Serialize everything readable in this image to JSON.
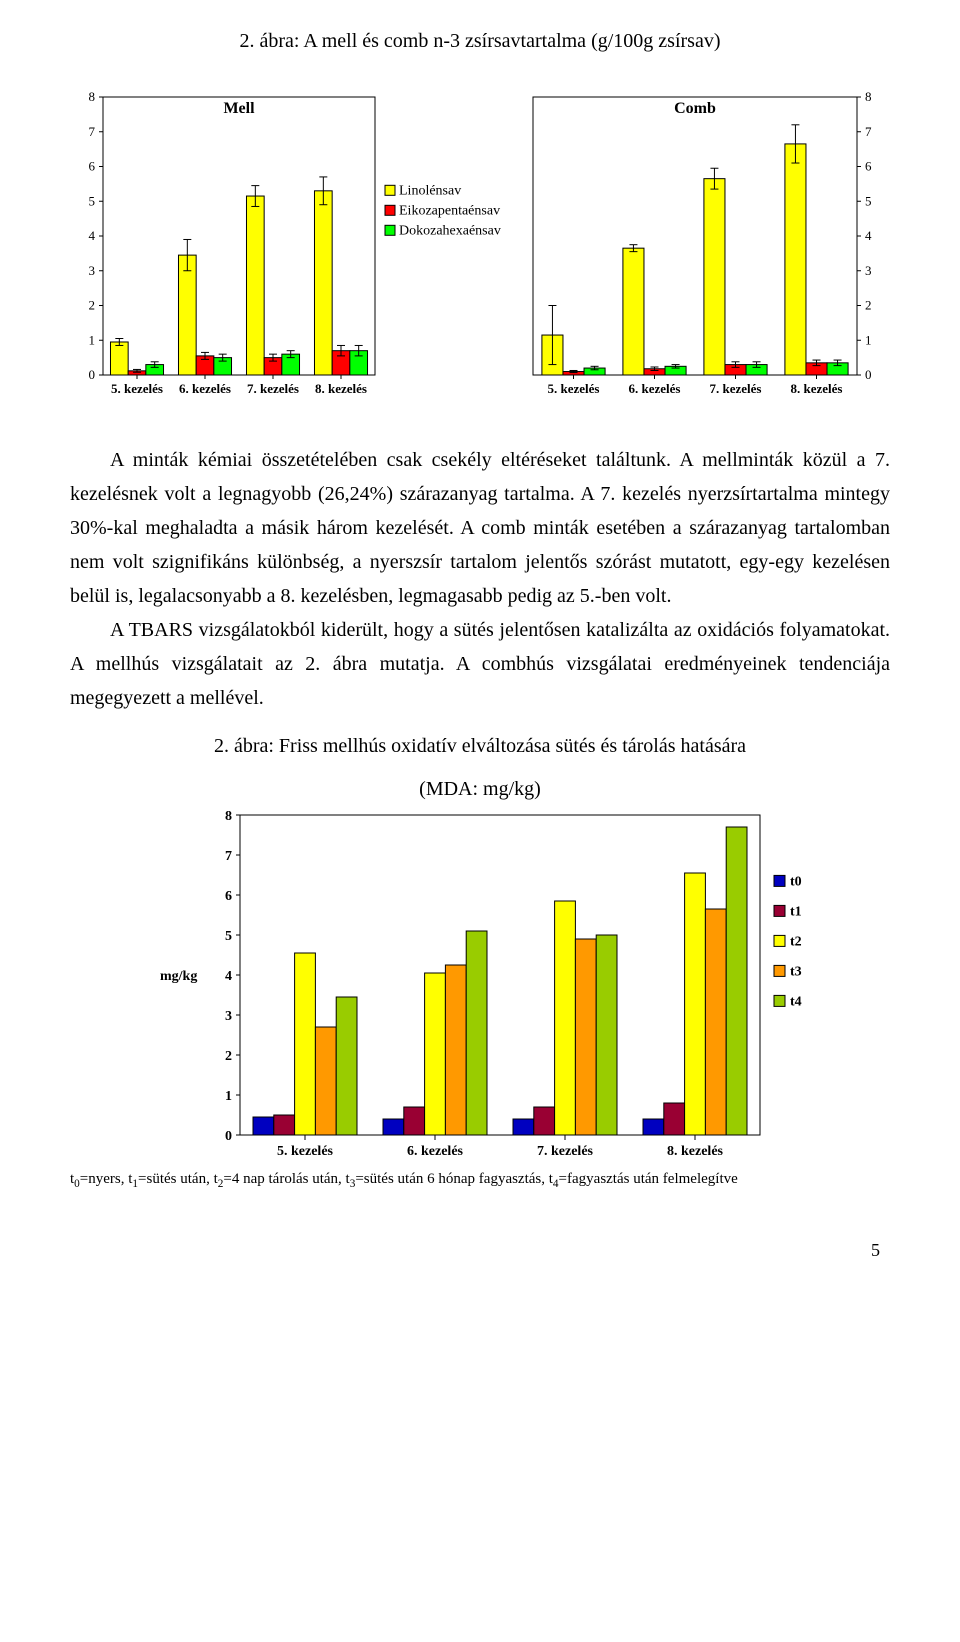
{
  "fig1": {
    "title": "2. ábra: A mell és comb n-3 zsírsavtartalma (g/100g zsírsav)",
    "ymin": 0,
    "ymax": 8,
    "ytick_step": 1,
    "categories": [
      "5. kezelés",
      "6. kezelés",
      "7. kezelés",
      "8. kezelés"
    ],
    "series": [
      {
        "name": "Linolénsav",
        "color": "#ffff00",
        "border": "#000000"
      },
      {
        "name": "Eikozapentaénsav",
        "color": "#ff0000",
        "border": "#000000"
      },
      {
        "name": "Dokozahexaénsav",
        "color": "#00ff00",
        "border": "#000000"
      }
    ],
    "panels": [
      {
        "title": "Mell",
        "axis": "left",
        "show_legend": true,
        "data": [
          [
            {
              "v": 0.95,
              "e": 0.1
            },
            {
              "v": 0.12,
              "e": 0.04
            },
            {
              "v": 0.3,
              "e": 0.08
            }
          ],
          [
            {
              "v": 3.45,
              "e": 0.45
            },
            {
              "v": 0.55,
              "e": 0.1
            },
            {
              "v": 0.5,
              "e": 0.1
            }
          ],
          [
            {
              "v": 5.15,
              "e": 0.3
            },
            {
              "v": 0.5,
              "e": 0.1
            },
            {
              "v": 0.6,
              "e": 0.1
            }
          ],
          [
            {
              "v": 5.3,
              "e": 0.4
            },
            {
              "v": 0.7,
              "e": 0.15
            },
            {
              "v": 0.7,
              "e": 0.15
            }
          ]
        ]
      },
      {
        "title": "Comb",
        "axis": "right",
        "show_legend": false,
        "data": [
          [
            {
              "v": 1.15,
              "e": 0.85
            },
            {
              "v": 0.1,
              "e": 0.03
            },
            {
              "v": 0.2,
              "e": 0.05
            }
          ],
          [
            {
              "v": 3.65,
              "e": 0.1
            },
            {
              "v": 0.18,
              "e": 0.05
            },
            {
              "v": 0.25,
              "e": 0.05
            }
          ],
          [
            {
              "v": 5.65,
              "e": 0.3
            },
            {
              "v": 0.3,
              "e": 0.08
            },
            {
              "v": 0.3,
              "e": 0.08
            }
          ],
          [
            {
              "v": 6.65,
              "e": 0.55
            },
            {
              "v": 0.35,
              "e": 0.08
            },
            {
              "v": 0.35,
              "e": 0.08
            }
          ]
        ]
      }
    ],
    "legend_fontsize": 14,
    "tick_fontsize": 13,
    "title_fontsize": 16,
    "panel_title_fontsize": 16,
    "background": "#ffffff",
    "axis_color": "#000000",
    "bar_width": 0.26,
    "error_cap": 4
  },
  "paragraph1": "A minták kémiai összetételében csak csekély eltéréseket találtunk. A mellminták közül a 7. kezelésnek volt a legnagyobb (26,24%) szárazanyag tartalma. A 7. kezelés nyerzsírtartalma mintegy 30%-kal meghaladta a másik három kezelését. A comb minták esetében a szárazanyag tartalomban nem volt szignifikáns különbség, a nyerszsír tartalom jelentős szórást mutatott, egy-egy kezelésen belül is, legalacsonyabb a 8. kezelésben, legmagasabb pedig az 5.-ben volt.",
  "paragraph2": "A TBARS vizsgálatokból kiderült, hogy a sütés jelentősen katalizálta az oxidációs folyamatokat. A mellhús vizsgálatait az 2. ábra mutatja. A combhús vizsgálatai eredményeinek tendenciája megegyezett a mellével.",
  "fig2": {
    "title": "2. ábra: Friss mellhús oxidatív elváltozása sütés és tárolás hatására",
    "subtitle": "(MDA: mg/kg)",
    "ylabel": "mg/kg",
    "ymin": 0,
    "ymax": 8,
    "ytick_step": 1,
    "categories": [
      "5. kezelés",
      "6. kezelés",
      "7. kezelés",
      "8. kezelés"
    ],
    "series": [
      {
        "name": "t0",
        "color": "#0000c0",
        "border": "#000000"
      },
      {
        "name": "t1",
        "color": "#990033",
        "border": "#000000"
      },
      {
        "name": "t2",
        "color": "#ffff00",
        "border": "#000000"
      },
      {
        "name": "t3",
        "color": "#ff9900",
        "border": "#000000"
      },
      {
        "name": "t4",
        "color": "#99cc00",
        "border": "#000000"
      }
    ],
    "data": [
      [
        0.45,
        0.5,
        4.55,
        2.7,
        3.45
      ],
      [
        0.4,
        0.7,
        4.05,
        4.25,
        5.1
      ],
      [
        0.4,
        0.7,
        5.85,
        4.9,
        5.0
      ],
      [
        0.4,
        0.8,
        6.55,
        5.65,
        7.7
      ]
    ],
    "legend_fontsize": 14,
    "tick_fontsize": 14,
    "title_fontsize": 20,
    "background": "#ffffff",
    "axis_color": "#000000",
    "bar_width": 0.16
  },
  "footnote": {
    "prefix": "t",
    "items": [
      {
        "sub": "0",
        "text": "nyers"
      },
      {
        "sub": "1",
        "text": "sütés után"
      },
      {
        "sub": "2",
        "text": "4 nap tárolás után"
      },
      {
        "sub": "3",
        "text": "sütés után 6 hónap fagyasztás"
      },
      {
        "sub": "4",
        "text": "fagyasztás után felmelegítve"
      }
    ]
  },
  "page_number": "5"
}
